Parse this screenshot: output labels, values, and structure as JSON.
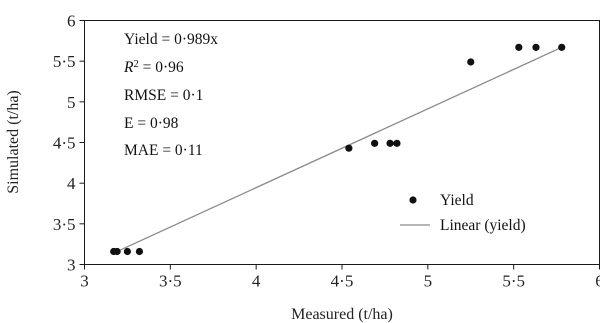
{
  "chart_data": {
    "type": "scatter",
    "xlabel": "Measured (t/ha)",
    "ylabel": "Simulated (t/ha)",
    "xlim": [
      3,
      6
    ],
    "ylim": [
      3,
      6
    ],
    "x_ticks": [
      3,
      3.5,
      4,
      4.5,
      5,
      5.5,
      6
    ],
    "y_ticks": [
      3,
      3.5,
      4,
      4.5,
      5,
      5.5,
      6
    ],
    "x_tick_labels": [
      "3",
      "3·5",
      "4",
      "4·5",
      "5",
      "5·5",
      "6"
    ],
    "y_tick_labels": [
      "3",
      "3·5",
      "4",
      "4·5",
      "5",
      "5·5",
      "6"
    ],
    "grid": false,
    "series": [
      {
        "name": "Yield",
        "type": "scatter",
        "color": "#111111",
        "x": [
          3.17,
          3.19,
          3.25,
          3.32,
          4.54,
          4.69,
          4.78,
          4.82,
          5.25,
          5.53,
          5.63,
          5.78
        ],
        "y": [
          3.16,
          3.16,
          3.16,
          3.16,
          4.43,
          4.49,
          4.49,
          4.49,
          5.49,
          5.67,
          5.67,
          5.67
        ]
      },
      {
        "name": "Linear (yield)",
        "type": "line",
        "color": "#8a8a8a",
        "x": [
          3.2,
          5.78
        ],
        "y": [
          3.17,
          5.67
        ]
      }
    ],
    "legend": {
      "position": "right",
      "entries": [
        {
          "label": "Yield",
          "marker": "dot"
        },
        {
          "label": "Linear (yield)",
          "marker": "line"
        }
      ]
    },
    "annotations": {
      "equation": "Yield = 0·989x",
      "r2_label": "R",
      "r2_sup": "2",
      "r2_value": " = 0·96",
      "rmse": "RMSE = 0·1",
      "e": "E = 0·98",
      "mae": "MAE = 0·11"
    }
  }
}
